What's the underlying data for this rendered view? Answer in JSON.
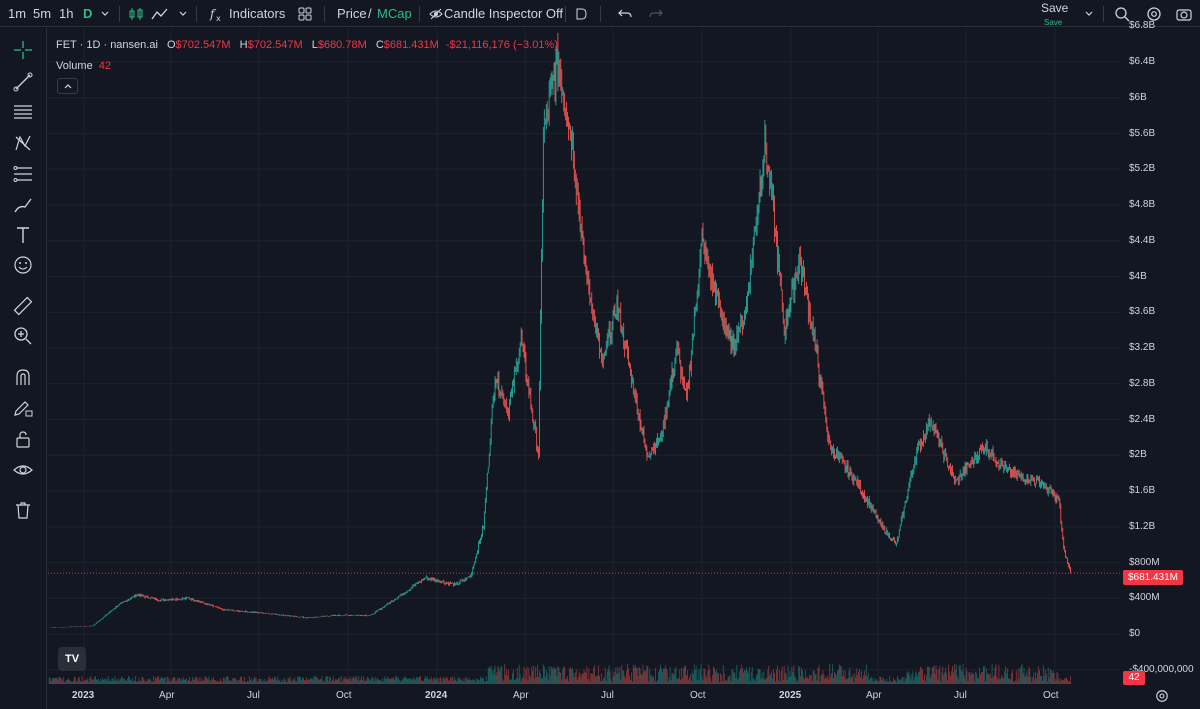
{
  "toolbar": {
    "intervals": [
      {
        "label": "1m",
        "active": false
      },
      {
        "label": "5m",
        "active": false
      },
      {
        "label": "1h",
        "active": false
      },
      {
        "label": "D",
        "active": true
      }
    ],
    "indicators_label": "Indicators",
    "price_label": "Price",
    "slash": "/",
    "mcap_label": "MCap",
    "candle_inspector_label": "Candle Inspector Off",
    "save_label": "Save",
    "save_sub_label": "Save",
    "icons": [
      "chart-style-icon",
      "line-chart-icon",
      "chevron-down-icon",
      "fx-indicators-icon",
      "layouts-icon",
      "eye-off-icon",
      "flag-icon",
      "undo-icon",
      "redo-icon",
      "chevron-down-icon",
      "quick-search-icon",
      "settings-icon",
      "camera-icon"
    ]
  },
  "left_toolbar": {
    "tools": [
      "crosshair-icon",
      "trend-line-icon",
      "horizontal-lines-icon",
      "pattern-icon",
      "fib-icon",
      "brush-icon",
      "text-icon",
      "emoji-icon",
      "ruler-icon",
      "zoom-in-icon",
      "magnet-icon",
      "pencil-lock-icon",
      "lock-icon",
      "eye-icon",
      "trash-icon"
    ]
  },
  "legend": {
    "symbol": "FET · 1D · nansen.ai",
    "open_key": "O",
    "open": "$702.547M",
    "high_key": "H",
    "high": "$702.547M",
    "low_key": "L",
    "low": "$680.78M",
    "close_key": "C",
    "close": "$681.431M",
    "change": "-$21,116,176 (−3.01%)",
    "volume_label": "Volume",
    "volume_value": "42"
  },
  "colors": {
    "background": "#131722",
    "grid": "#1e222d",
    "up": "#26a69a",
    "down": "#ef5350",
    "accent_green": "#2ebd85",
    "price_line": "#f23645"
  },
  "price_label": "$681.431M",
  "volume_label": "42",
  "logo_text": "TV",
  "chart_data": {
    "type": "candlestick",
    "title": "FET · 1D · nansen.ai",
    "y_unit": "market cap (USD)",
    "y_ticks": [
      "$6.8B",
      "$6.4B",
      "$6B",
      "$5.6B",
      "$5.2B",
      "$4.8B",
      "$4.4B",
      "$4B",
      "$3.6B",
      "$3.2B",
      "$2.8B",
      "$2.4B",
      "$2B",
      "$1.6B",
      "$1.2B",
      "$800M",
      "$400M",
      "$0",
      "-$400,000,000"
    ],
    "y_tick_values": [
      6.8,
      6.4,
      6.0,
      5.6,
      5.2,
      4.8,
      4.4,
      4.0,
      3.6,
      3.2,
      2.8,
      2.4,
      2.0,
      1.6,
      1.2,
      0.8,
      0.4,
      0.0,
      -0.4
    ],
    "x_ticks": [
      {
        "label": "2023",
        "bold": true,
        "date": "2023-01-01"
      },
      {
        "label": "Apr",
        "bold": false,
        "date": "2023-04-01"
      },
      {
        "label": "Jul",
        "bold": false,
        "date": "2023-07-01"
      },
      {
        "label": "Oct",
        "bold": false,
        "date": "2023-10-01"
      },
      {
        "label": "2024",
        "bold": true,
        "date": "2024-01-01"
      },
      {
        "label": "Apr",
        "bold": false,
        "date": "2024-04-01"
      },
      {
        "label": "Jul",
        "bold": false,
        "date": "2024-07-01"
      },
      {
        "label": "Oct",
        "bold": false,
        "date": "2024-10-01"
      },
      {
        "label": "2025",
        "bold": true,
        "date": "2025-01-01"
      },
      {
        "label": "Apr",
        "bold": false,
        "date": "2025-04-01"
      },
      {
        "label": "Jul",
        "bold": false,
        "date": "2025-07-01"
      },
      {
        "label": "Oct",
        "bold": false,
        "date": "2025-10-01"
      }
    ],
    "last_value": 0.681,
    "close_series_billions": [
      {
        "date": "2022-11-25",
        "close": 0.07
      },
      {
        "date": "2023-01-10",
        "close": 0.09
      },
      {
        "date": "2023-02-05",
        "close": 0.32
      },
      {
        "date": "2023-02-25",
        "close": 0.44
      },
      {
        "date": "2023-03-20",
        "close": 0.38
      },
      {
        "date": "2023-04-20",
        "close": 0.4
      },
      {
        "date": "2023-05-25",
        "close": 0.27
      },
      {
        "date": "2023-07-10",
        "close": 0.23
      },
      {
        "date": "2023-08-20",
        "close": 0.18
      },
      {
        "date": "2023-09-20",
        "close": 0.21
      },
      {
        "date": "2023-10-25",
        "close": 0.21
      },
      {
        "date": "2023-11-25",
        "close": 0.44
      },
      {
        "date": "2023-12-20",
        "close": 0.63
      },
      {
        "date": "2024-01-20",
        "close": 0.55
      },
      {
        "date": "2024-02-05",
        "close": 0.65
      },
      {
        "date": "2024-02-18",
        "close": 1.2
      },
      {
        "date": "2024-03-01",
        "close": 2.9
      },
      {
        "date": "2024-03-15",
        "close": 2.5
      },
      {
        "date": "2024-03-28",
        "close": 3.3
      },
      {
        "date": "2024-04-15",
        "close": 2.0
      },
      {
        "date": "2024-04-20",
        "close": 5.6
      },
      {
        "date": "2024-05-05",
        "close": 6.4
      },
      {
        "date": "2024-05-20",
        "close": 5.5
      },
      {
        "date": "2024-06-01",
        "close": 4.2
      },
      {
        "date": "2024-06-20",
        "close": 3.0
      },
      {
        "date": "2024-07-05",
        "close": 3.7
      },
      {
        "date": "2024-08-05",
        "close": 2.0
      },
      {
        "date": "2024-08-20",
        "close": 2.2
      },
      {
        "date": "2024-09-05",
        "close": 3.2
      },
      {
        "date": "2024-09-15",
        "close": 2.6
      },
      {
        "date": "2024-10-01",
        "close": 4.4
      },
      {
        "date": "2024-10-15",
        "close": 3.8
      },
      {
        "date": "2024-11-01",
        "close": 3.2
      },
      {
        "date": "2024-11-15",
        "close": 3.6
      },
      {
        "date": "2024-12-05",
        "close": 5.5
      },
      {
        "date": "2024-12-15",
        "close": 4.6
      },
      {
        "date": "2024-12-25",
        "close": 3.4
      },
      {
        "date": "2025-01-10",
        "close": 4.2
      },
      {
        "date": "2025-01-25",
        "close": 3.3
      },
      {
        "date": "2025-02-10",
        "close": 2.1
      },
      {
        "date": "2025-03-10",
        "close": 1.7
      },
      {
        "date": "2025-04-05",
        "close": 1.2
      },
      {
        "date": "2025-04-20",
        "close": 1.0
      },
      {
        "date": "2025-05-10",
        "close": 2.0
      },
      {
        "date": "2025-05-25",
        "close": 2.4
      },
      {
        "date": "2025-06-20",
        "close": 1.7
      },
      {
        "date": "2025-07-20",
        "close": 2.1
      },
      {
        "date": "2025-08-15",
        "close": 1.8
      },
      {
        "date": "2025-09-15",
        "close": 1.7
      },
      {
        "date": "2025-10-05",
        "close": 1.5
      },
      {
        "date": "2025-10-10",
        "close": 0.95
      },
      {
        "date": "2025-10-17",
        "close": 0.681
      }
    ]
  }
}
